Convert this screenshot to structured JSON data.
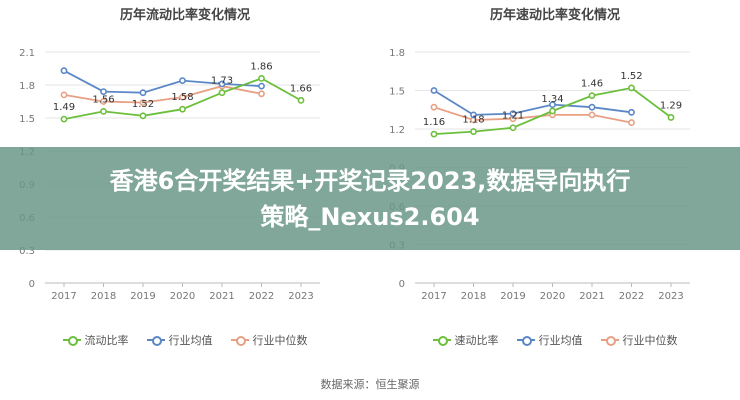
{
  "chart_data": [
    {
      "type": "line",
      "title": "历年流动比率变化情况",
      "categories": [
        "2017",
        "2018",
        "2019",
        "2020",
        "2021",
        "2022",
        "2023"
      ],
      "yticks": [
        "0",
        "0.3",
        "0.6",
        "0.9",
        "1.2",
        "1.5",
        "1.8",
        "2.1"
      ],
      "ylim": [
        0,
        2.1
      ],
      "grid": true,
      "legend_position": "bottom",
      "series": [
        {
          "name": "流动比率",
          "color": "#6cbf3c",
          "values": [
            1.49,
            1.56,
            1.52,
            1.58,
            1.73,
            1.86,
            1.66
          ],
          "labels": [
            "1.49",
            "1.56",
            "1.52",
            "1.58",
            "1.73",
            "1.86",
            "1.66"
          ]
        },
        {
          "name": "行业均值",
          "color": "#5b87c7",
          "values": [
            1.93,
            1.74,
            1.73,
            1.84,
            1.81,
            1.79,
            null
          ]
        },
        {
          "name": "行业中位数",
          "color": "#e8a084",
          "values": [
            1.71,
            1.65,
            1.64,
            1.69,
            1.79,
            1.72,
            null
          ]
        }
      ]
    },
    {
      "type": "line",
      "title": "历年速动比率变化情况",
      "categories": [
        "2017",
        "2018",
        "2019",
        "2020",
        "2021",
        "2022",
        "2023"
      ],
      "yticks": [
        "0",
        "0.3",
        "0.6",
        "0.9",
        "1.2",
        "1.5",
        "1.8"
      ],
      "ylim": [
        0,
        1.8
      ],
      "grid": true,
      "legend_position": "bottom",
      "series": [
        {
          "name": "速动比率",
          "color": "#6cbf3c",
          "values": [
            1.16,
            1.18,
            1.21,
            1.34,
            1.46,
            1.52,
            1.29
          ],
          "labels": [
            "1.16",
            "1.18",
            "1.21",
            "1.34",
            "1.46",
            "1.52",
            "1.29"
          ]
        },
        {
          "name": "行业均值",
          "color": "#5b87c7",
          "values": [
            1.5,
            1.31,
            1.32,
            1.39,
            1.37,
            1.33,
            null
          ]
        },
        {
          "name": "行业中位数",
          "color": "#e8a084",
          "values": [
            1.37,
            1.27,
            1.28,
            1.31,
            1.31,
            1.25,
            null
          ]
        }
      ]
    }
  ],
  "source": "数据来源：恒生聚源",
  "banner": {
    "line1": "香港6合开奖结果+开奖记录2023,数据导向执行",
    "line2": "策略_Nexus2.604"
  }
}
